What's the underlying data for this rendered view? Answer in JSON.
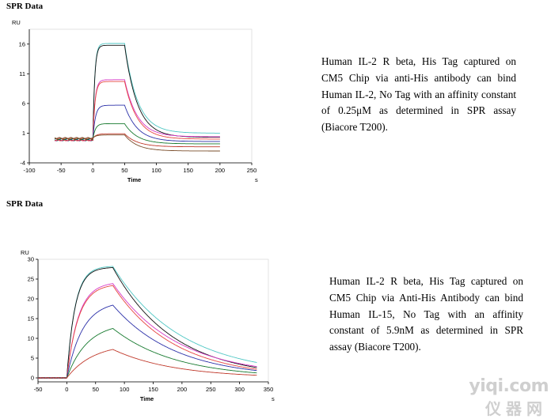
{
  "sections": [
    {
      "title": "SPR Data",
      "description": "Human IL-2 R beta, His Tag captured on CM5 Chip via anti-His antibody can bind Human IL-2, No Tag with an affinity constant of 0.25μM as determined in SPR assay (Biacore T200)."
    },
    {
      "title": "SPR Data",
      "description": "Human IL-2 R beta, His Tag captured on CM5 Chip via Anti-His Antibody can bind Human IL-15, No Tag with an affinity constant of 5.9nM as determined in SPR assay (Biacore T200)."
    }
  ],
  "watermark": {
    "line1": "yiqi.com",
    "line2": "仪器网"
  },
  "chart_data": [
    {
      "type": "line",
      "ylabel": "RU",
      "xlabel": "Time",
      "x_unit": "s",
      "xlim": [
        -100,
        250
      ],
      "ylim": [
        -4,
        18.5
      ],
      "x_ticks": [
        -100,
        -50,
        0,
        50,
        100,
        150,
        200,
        250
      ],
      "y_ticks": [
        -4,
        1,
        6,
        11,
        16
      ],
      "grid": false,
      "x_start": -60,
      "association_start": 0,
      "dissociation_start": 50,
      "x_end": 200,
      "series": [
        {
          "color": "#4fc7c4",
          "baseline": -0.2,
          "rmax": 16.3,
          "kon": 0.35,
          "koff": 0.05,
          "tail": 1.0
        },
        {
          "color": "#111111",
          "baseline": -0.2,
          "rmax": 16.0,
          "kon": 0.35,
          "koff": 0.05,
          "tail": 0.3
        },
        {
          "color": "#d639c6",
          "baseline": -0.2,
          "rmax": 10.2,
          "kon": 0.3,
          "koff": 0.05,
          "tail": 0.4
        },
        {
          "color": "#e6443e",
          "baseline": -0.2,
          "rmax": 9.9,
          "kon": 0.3,
          "koff": 0.05,
          "tail": 0.0
        },
        {
          "color": "#2a2fa8",
          "baseline": 0.0,
          "rmax": 5.7,
          "kon": 0.25,
          "koff": 0.05,
          "tail": -0.4
        },
        {
          "color": "#177a2f",
          "baseline": 0.0,
          "rmax": 2.6,
          "kon": 0.25,
          "koff": 0.05,
          "tail": -0.8
        },
        {
          "color": "#c0392b",
          "baseline": 0.1,
          "rmax": 0.8,
          "kon": 0.2,
          "koff": 0.05,
          "tail": -1.3
        },
        {
          "color": "#7a4d2a",
          "baseline": 0.2,
          "rmax": 0.5,
          "kon": 0.2,
          "koff": 0.05,
          "tail": -2.0
        }
      ]
    },
    {
      "type": "line",
      "ylabel": "RU",
      "xlabel": "Time",
      "x_unit": "s",
      "xlim": [
        -50,
        350
      ],
      "ylim": [
        -1,
        30
      ],
      "x_ticks": [
        -50,
        0,
        50,
        100,
        150,
        200,
        250,
        300,
        350
      ],
      "y_ticks": [
        0,
        5,
        10,
        15,
        20,
        25,
        30
      ],
      "grid": false,
      "x_start": -50,
      "association_start": 0,
      "dissociation_start": 80,
      "x_end": 330,
      "series": [
        {
          "color": "#4fc7c4",
          "rmax": 28.3,
          "kon": 0.07,
          "koff": 0.0085,
          "tail": 0.6
        },
        {
          "color": "#111111",
          "rmax": 28.0,
          "kon": 0.07,
          "koff": 0.0095,
          "tail": 0.0
        },
        {
          "color": "#d639c6",
          "rmax": 24.3,
          "kon": 0.05,
          "koff": 0.009,
          "tail": 0.4
        },
        {
          "color": "#e6443e",
          "rmax": 23.8,
          "kon": 0.05,
          "koff": 0.0095,
          "tail": 0.0
        },
        {
          "color": "#2a2fa8",
          "rmax": 19.5,
          "kon": 0.036,
          "koff": 0.0092,
          "tail": 0.0
        },
        {
          "color": "#177a2f",
          "rmax": 14.0,
          "kon": 0.028,
          "koff": 0.0092,
          "tail": 0.0
        },
        {
          "color": "#c0392b",
          "rmax": 8.7,
          "kon": 0.022,
          "koff": 0.0095,
          "tail": 0.0
        }
      ]
    }
  ]
}
